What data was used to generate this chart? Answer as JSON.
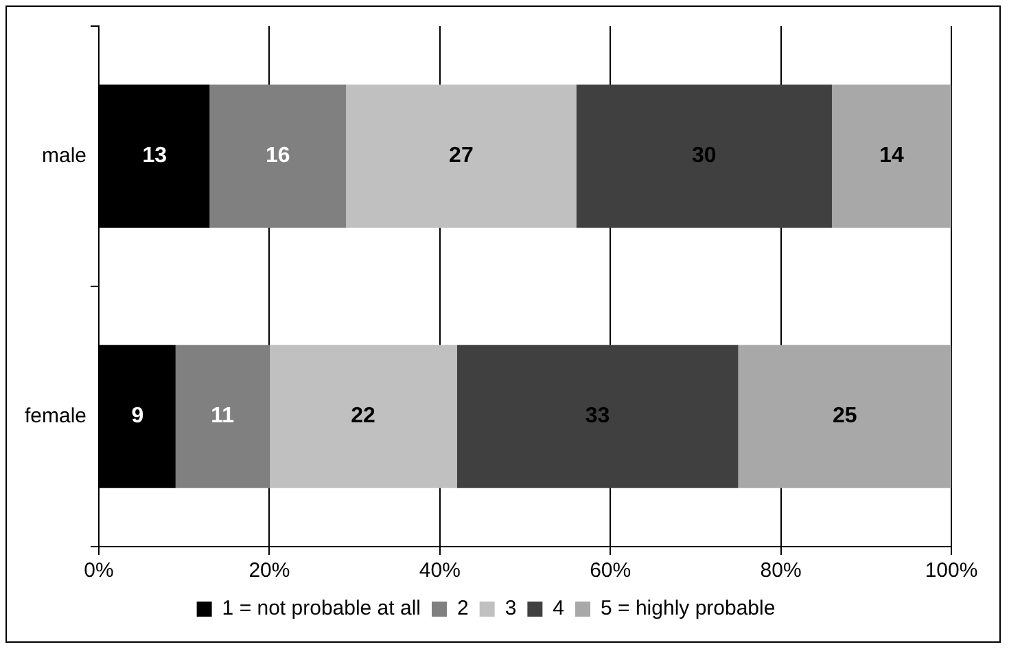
{
  "chart_data": {
    "type": "bar",
    "orientation": "horizontal",
    "stacked": true,
    "categories": [
      "male",
      "female"
    ],
    "series": [
      {
        "name": "1 = not probable at all",
        "color": "#000000",
        "values": [
          13,
          9
        ]
      },
      {
        "name": "2",
        "color": "#808080",
        "values": [
          16,
          11
        ]
      },
      {
        "name": "3",
        "color": "#c0c0c0",
        "values": [
          27,
          22
        ]
      },
      {
        "name": "4",
        "color": "#404040",
        "values": [
          30,
          33
        ]
      },
      {
        "name": "5 = highly probable",
        "color": "#a8a8a8",
        "values": [
          14,
          25
        ]
      }
    ],
    "xlim": [
      0,
      100
    ],
    "xticks": [
      {
        "value": 0,
        "label": "0%"
      },
      {
        "value": 20,
        "label": "20%"
      },
      {
        "value": 40,
        "label": "40%"
      },
      {
        "value": 60,
        "label": "60%"
      },
      {
        "value": 80,
        "label": "80%"
      },
      {
        "value": 100,
        "label": "100%"
      }
    ],
    "grid": "x",
    "legend": "bottom",
    "data_labels": true
  }
}
